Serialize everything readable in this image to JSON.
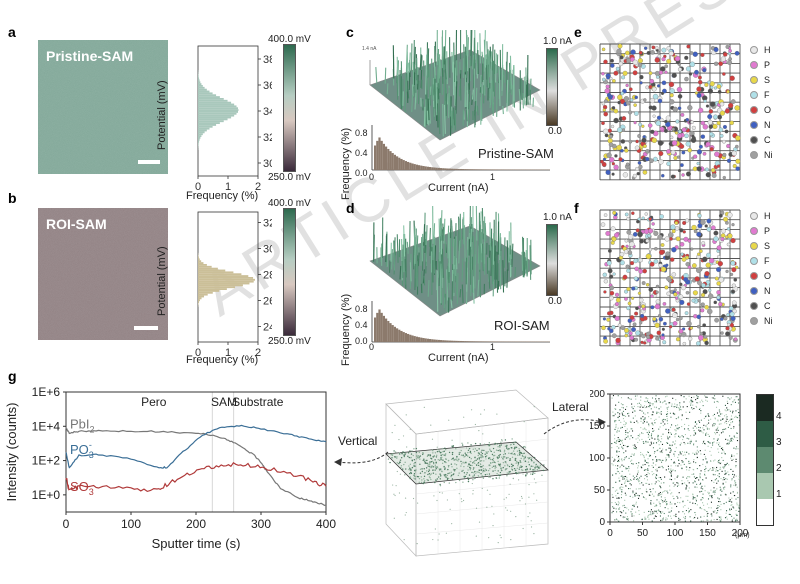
{
  "panels": {
    "a": {
      "letter": "a",
      "image_label": "Pristine-SAM"
    },
    "b": {
      "letter": "b",
      "image_label": "ROI-SAM"
    },
    "c": {
      "letter": "c",
      "label": "Pristine-SAM",
      "colorbar_top": "1.0 nA",
      "colorbar_bottom": "0.0"
    },
    "d": {
      "letter": "d",
      "label": "ROI-SAM",
      "colorbar_top": "1.0 nA",
      "colorbar_bottom": "0.0"
    },
    "e": {
      "letter": "e"
    },
    "f": {
      "letter": "f"
    },
    "g": {
      "letter": "g"
    }
  },
  "kpfm": {
    "ylabel": "Potential (mV)",
    "xlabel": "Frequency (%)",
    "colorbar_top": "400.0 mV",
    "colorbar_bottom": "250.0 mV",
    "x_ticks": [
      "0",
      "1",
      "2"
    ]
  },
  "cafm": {
    "ylabel": "Frequency (%)",
    "xlabel": "Current (nA)",
    "y_ticks": [
      "0.0",
      "0.4",
      "0.8"
    ],
    "x_ticks": [
      "0",
      "1"
    ]
  },
  "legend_elements": [
    "H",
    "P",
    "S",
    "F",
    "O",
    "N",
    "C",
    "Ni"
  ],
  "element_colors": [
    "#e8e8e8",
    "#e07ad0",
    "#e8d84a",
    "#b0e0e8",
    "#d04040",
    "#4060c0",
    "#505050",
    "#a0a0a0"
  ],
  "tof": {
    "vertical_label": "Vertical",
    "lateral_label": "Lateral",
    "lateral_unit": "(μm)",
    "lateral_ticks": [
      "0",
      "50",
      "100",
      "150",
      "200"
    ],
    "colorbar_ticks": [
      "1",
      "2",
      "3",
      "4"
    ]
  },
  "chart_data": [
    {
      "type": "bar",
      "panel": "a",
      "orientation": "horizontal",
      "ylabel": "Potential (mV)",
      "xlabel": "Frequency (%)",
      "y_ticks": [
        300,
        320,
        340,
        360,
        380
      ],
      "ylim": [
        290,
        390
      ],
      "xlim": [
        0,
        2
      ],
      "peak_center": 340,
      "peak_width": 9,
      "peak_max": 1.35,
      "color": "#a9c8bc"
    },
    {
      "type": "bar",
      "panel": "b",
      "orientation": "horizontal",
      "ylabel": "Potential (mV)",
      "xlabel": "Frequency (%)",
      "y_ticks": [
        240,
        260,
        280,
        300,
        320
      ],
      "ylim": [
        228,
        328
      ],
      "xlim": [
        0,
        2
      ],
      "peak_center": 275,
      "peak_width": 6,
      "peak_max": 1.9,
      "color": "#cbbf98"
    },
    {
      "type": "line",
      "panel": "g",
      "xlabel": "Sputter time (s)",
      "ylabel": "Intensity (counts)",
      "y_scale": "log",
      "y_ticks": [
        "1E+0",
        "1E+2",
        "1E+4",
        "1E+6"
      ],
      "x_ticks": [
        0,
        100,
        200,
        300,
        400
      ],
      "xlim": [
        0,
        400
      ],
      "ylim_log10": [
        -1,
        6
      ],
      "regions": [
        "Pero",
        "SAM",
        "Substrate"
      ],
      "series": [
        {
          "name": "PbI2",
          "color": "#777777",
          "x": [
            0,
            5,
            20,
            50,
            100,
            150,
            200,
            230,
            250,
            270,
            290,
            300,
            310,
            330,
            360,
            380,
            400
          ],
          "log10_y": [
            3.9,
            3.6,
            3.7,
            3.72,
            3.72,
            3.68,
            3.6,
            3.45,
            3.2,
            2.8,
            2.3,
            1.9,
            1.3,
            0.4,
            -0.2,
            -0.4,
            -0.6
          ]
        },
        {
          "name": "PO3-",
          "color": "#3a6e96",
          "x": [
            0,
            5,
            20,
            50,
            100,
            140,
            155,
            180,
            210,
            240,
            270,
            300,
            340,
            370,
            400
          ],
          "log10_y": [
            2.5,
            1.6,
            2.3,
            2.35,
            2.1,
            1.6,
            1.6,
            2.5,
            3.5,
            3.95,
            4.05,
            3.85,
            3.55,
            3.3,
            3.1
          ]
        },
        {
          "name": "SO3",
          "color": "#b03a3a",
          "x": [
            0,
            5,
            20,
            50,
            100,
            140,
            160,
            190,
            220,
            250,
            280,
            310,
            350,
            380,
            400
          ],
          "log10_y": [
            1.1,
            0.2,
            0.55,
            0.45,
            0.35,
            0.25,
            0.7,
            1.2,
            1.6,
            1.75,
            1.75,
            1.55,
            1.2,
            0.8,
            0.5
          ]
        }
      ]
    }
  ]
}
